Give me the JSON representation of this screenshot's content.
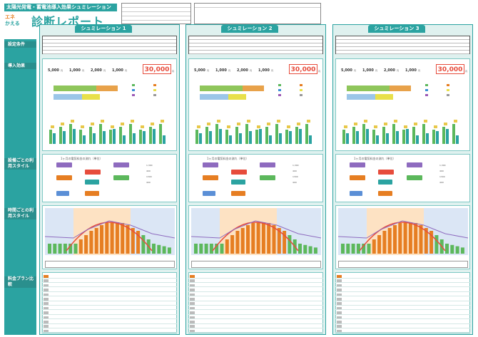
{
  "header": {
    "banner": "太陽光発電・蓄電池導入効果シュミレーション",
    "logo_line1": "エネ",
    "logo_line2": "かえる",
    "title": "診断レポート",
    "table_caption": "",
    "customer_caption": "",
    "note": ""
  },
  "side": {
    "conditions": "設定条件",
    "effect": "導入効果",
    "effect_desc": "",
    "device_style": "設備ごとの利用スタイル",
    "device_desc": "",
    "time_style": "時間ごとの利用スタイル",
    "time_desc": "",
    "plan": "料金プラン比較",
    "plan_desc": ""
  },
  "columns": [
    {
      "tab": "シュミレーション 1",
      "flow": [
        "5,000",
        "1,000",
        "2,000",
        "1,000",
        "30,000"
      ],
      "result_value": "30,000",
      "result_unit": "円"
    },
    {
      "tab": "シュミレーション 2",
      "flow": [
        "5,000",
        "1,000",
        "2,000",
        "1,000",
        "30,000"
      ],
      "result_value": "30,000",
      "result_unit": "円"
    },
    {
      "tab": "シュミレーション 3",
      "flow": [
        "5,000",
        "1,000",
        "2,000",
        "1,000",
        "30,000"
      ],
      "result_value": "30,000",
      "result_unit": "円"
    }
  ],
  "labels": {
    "month_title": "",
    "month_flow": "1ヶ月の電気料金の流れ（単位）",
    "unit_yen": "円",
    "kwh_values": [
      "1,300",
      "400",
      "1300",
      "400"
    ],
    "unit_kwh": "kWh"
  },
  "colors": {
    "teal": "#2ba3a1",
    "dark_teal": "#2a8f8d",
    "panel_bg": "#dff1ef",
    "orange": "#e67e22",
    "green": "#5cb85c",
    "red": "#e74c3c",
    "purple": "#8e6bbf"
  }
}
